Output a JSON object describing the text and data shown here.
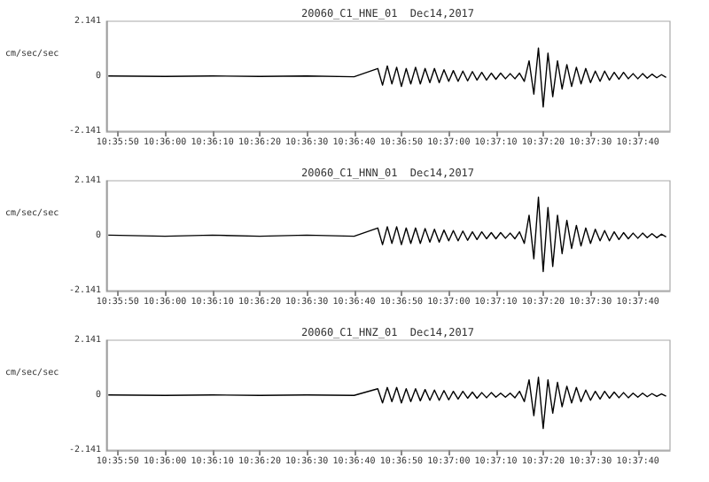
{
  "chart_data": [
    {
      "type": "line",
      "title": "20060_C1_HNE_01  Dec14,2017",
      "ylabel": "cm/sec/sec",
      "marker": "none",
      "grid": false,
      "xlim": [
        10.59656,
        10.62967
      ],
      "ylim": [
        -2.141,
        2.141
      ],
      "yticks": [
        -2.141,
        0,
        2.141
      ],
      "xticks": [
        {
          "value": 10.59722,
          "label": "10:35:50"
        },
        {
          "value": 10.6,
          "label": "10:36:00"
        },
        {
          "value": 10.60278,
          "label": "10:36:10"
        },
        {
          "value": 10.60556,
          "label": "10:36:20"
        },
        {
          "value": 10.60833,
          "label": "10:36:30"
        },
        {
          "value": 10.61111,
          "label": "10:36:40"
        },
        {
          "value": 10.61389,
          "label": "10:36:50"
        },
        {
          "value": 10.61667,
          "label": "10:37:00"
        },
        {
          "value": 10.61944,
          "label": "10:37:10"
        },
        {
          "value": 10.62222,
          "label": "10:37:20"
        },
        {
          "value": 10.625,
          "label": "10:37:30"
        },
        {
          "value": 10.62778,
          "label": "10:37:40"
        }
      ],
      "x": [
        10.59667,
        10.6,
        10.60278,
        10.60556,
        10.60833,
        10.61111,
        10.6125,
        10.61278,
        10.61306,
        10.61333,
        10.61361,
        10.61389,
        10.61417,
        10.61444,
        10.61472,
        10.615,
        10.61528,
        10.61556,
        10.61583,
        10.61611,
        10.61639,
        10.61667,
        10.61694,
        10.61722,
        10.6175,
        10.61778,
        10.61806,
        10.61833,
        10.61861,
        10.61889,
        10.61917,
        10.61944,
        10.61972,
        10.62,
        10.62028,
        10.62056,
        10.62083,
        10.62111,
        10.62139,
        10.62167,
        10.62194,
        10.62222,
        10.6225,
        10.62278,
        10.62306,
        10.62333,
        10.62361,
        10.62389,
        10.62417,
        10.62444,
        10.62472,
        10.625,
        10.62528,
        10.62556,
        10.62583,
        10.62611,
        10.62639,
        10.62667,
        10.62694,
        10.62722,
        10.6275,
        10.62778,
        10.62806,
        10.62833,
        10.62861,
        10.62889,
        10.62917,
        10.62944
      ],
      "series": [
        {
          "color": "#000000",
          "values": [
            0.01,
            -0.01,
            0.01,
            -0.01,
            0.01,
            -0.02,
            0.3,
            -0.35,
            0.4,
            -0.3,
            0.35,
            -0.4,
            0.3,
            -0.3,
            0.35,
            -0.3,
            0.3,
            -0.25,
            0.3,
            -0.25,
            0.25,
            -0.2,
            0.22,
            -0.2,
            0.2,
            -0.18,
            0.18,
            -0.15,
            0.15,
            -0.15,
            0.12,
            -0.12,
            0.12,
            -0.1,
            0.1,
            -0.1,
            0.12,
            -0.2,
            0.6,
            -0.7,
            1.1,
            -1.2,
            0.9,
            -0.8,
            0.6,
            -0.5,
            0.45,
            -0.4,
            0.35,
            -0.3,
            0.3,
            -0.25,
            0.2,
            -0.2,
            0.2,
            -0.15,
            0.15,
            -0.12,
            0.15,
            -0.1,
            0.1,
            -0.1,
            0.1,
            -0.08,
            0.08,
            -0.06,
            0.06,
            -0.05
          ]
        }
      ]
    },
    {
      "type": "line",
      "title": "20060_C1_HNN_01  Dec14,2017",
      "ylabel": "cm/sec/sec",
      "marker": "none",
      "grid": false,
      "xlim": [
        10.59656,
        10.62967
      ],
      "ylim": [
        -2.141,
        2.141
      ],
      "yticks": [
        -2.141,
        0,
        2.141
      ],
      "xticks": [
        {
          "value": 10.59722,
          "label": "10:35:50"
        },
        {
          "value": 10.6,
          "label": "10:36:00"
        },
        {
          "value": 10.60278,
          "label": "10:36:10"
        },
        {
          "value": 10.60556,
          "label": "10:36:20"
        },
        {
          "value": 10.60833,
          "label": "10:36:30"
        },
        {
          "value": 10.61111,
          "label": "10:36:40"
        },
        {
          "value": 10.61389,
          "label": "10:36:50"
        },
        {
          "value": 10.61667,
          "label": "10:37:00"
        },
        {
          "value": 10.61944,
          "label": "10:37:10"
        },
        {
          "value": 10.62222,
          "label": "10:37:20"
        },
        {
          "value": 10.625,
          "label": "10:37:30"
        },
        {
          "value": 10.62778,
          "label": "10:37:40"
        }
      ],
      "x": [
        10.59667,
        10.6,
        10.60278,
        10.60556,
        10.60833,
        10.61111,
        10.6125,
        10.61278,
        10.61306,
        10.61333,
        10.61361,
        10.61389,
        10.61417,
        10.61444,
        10.61472,
        10.615,
        10.61528,
        10.61556,
        10.61583,
        10.61611,
        10.61639,
        10.61667,
        10.61694,
        10.61722,
        10.6175,
        10.61778,
        10.61806,
        10.61833,
        10.61861,
        10.61889,
        10.61917,
        10.61944,
        10.61972,
        10.62,
        10.62028,
        10.62056,
        10.62083,
        10.62111,
        10.62139,
        10.62167,
        10.62194,
        10.62222,
        10.6225,
        10.62278,
        10.62306,
        10.62333,
        10.62361,
        10.62389,
        10.62417,
        10.62444,
        10.62472,
        10.625,
        10.62528,
        10.62556,
        10.62583,
        10.62611,
        10.62639,
        10.62667,
        10.62694,
        10.62722,
        10.6275,
        10.62778,
        10.62806,
        10.62833,
        10.62861,
        10.62889,
        10.62917,
        10.62944
      ],
      "series": [
        {
          "color": "#000000",
          "values": [
            0.02,
            -0.02,
            0.02,
            -0.02,
            0.02,
            -0.02,
            0.3,
            -0.35,
            0.35,
            -0.3,
            0.35,
            -0.35,
            0.3,
            -0.3,
            0.3,
            -0.3,
            0.28,
            -0.25,
            0.25,
            -0.25,
            0.22,
            -0.2,
            0.2,
            -0.2,
            0.18,
            -0.18,
            0.15,
            -0.15,
            0.15,
            -0.12,
            0.12,
            -0.12,
            0.12,
            -0.1,
            0.1,
            -0.12,
            0.15,
            -0.3,
            0.8,
            -0.9,
            1.5,
            -1.4,
            1.1,
            -1.2,
            0.8,
            -0.7,
            0.6,
            -0.5,
            0.4,
            -0.4,
            0.3,
            -0.3,
            0.25,
            -0.2,
            0.2,
            -0.2,
            0.15,
            -0.15,
            0.12,
            -0.12,
            0.1,
            -0.1,
            0.1,
            -0.08,
            0.08,
            -0.08,
            0.06,
            -0.05
          ]
        }
      ]
    },
    {
      "type": "line",
      "title": "20060_C1_HNZ_01  Dec14,2017",
      "ylabel": "cm/sec/sec",
      "marker": "none",
      "grid": false,
      "xlim": [
        10.59656,
        10.62967
      ],
      "ylim": [
        -2.141,
        2.141
      ],
      "yticks": [
        -2.141,
        0,
        2.141
      ],
      "xticks": [
        {
          "value": 10.59722,
          "label": "10:35:50"
        },
        {
          "value": 10.6,
          "label": "10:36:00"
        },
        {
          "value": 10.60278,
          "label": "10:36:10"
        },
        {
          "value": 10.60556,
          "label": "10:36:20"
        },
        {
          "value": 10.60833,
          "label": "10:36:30"
        },
        {
          "value": 10.61111,
          "label": "10:36:40"
        },
        {
          "value": 10.61389,
          "label": "10:36:50"
        },
        {
          "value": 10.61667,
          "label": "10:37:00"
        },
        {
          "value": 10.61944,
          "label": "10:37:10"
        },
        {
          "value": 10.62222,
          "label": "10:37:20"
        },
        {
          "value": 10.625,
          "label": "10:37:30"
        },
        {
          "value": 10.62778,
          "label": "10:37:40"
        }
      ],
      "x": [
        10.59667,
        10.6,
        10.60278,
        10.60556,
        10.60833,
        10.61111,
        10.6125,
        10.61278,
        10.61306,
        10.61333,
        10.61361,
        10.61389,
        10.61417,
        10.61444,
        10.61472,
        10.615,
        10.61528,
        10.61556,
        10.61583,
        10.61611,
        10.61639,
        10.61667,
        10.61694,
        10.61722,
        10.6175,
        10.61778,
        10.61806,
        10.61833,
        10.61861,
        10.61889,
        10.61917,
        10.61944,
        10.61972,
        10.62,
        10.62028,
        10.62056,
        10.62083,
        10.62111,
        10.62139,
        10.62167,
        10.62194,
        10.62222,
        10.6225,
        10.62278,
        10.62306,
        10.62333,
        10.62361,
        10.62389,
        10.62417,
        10.62444,
        10.62472,
        10.625,
        10.62528,
        10.62556,
        10.62583,
        10.62611,
        10.62639,
        10.62667,
        10.62694,
        10.62722,
        10.6275,
        10.62778,
        10.62806,
        10.62833,
        10.62861,
        10.62889,
        10.62917,
        10.62944
      ],
      "series": [
        {
          "color": "#000000",
          "values": [
            0.01,
            -0.01,
            0.01,
            -0.01,
            0.01,
            -0.01,
            0.25,
            -0.3,
            0.3,
            -0.25,
            0.3,
            -0.3,
            0.25,
            -0.25,
            0.25,
            -0.22,
            0.22,
            -0.2,
            0.2,
            -0.2,
            0.18,
            -0.18,
            0.15,
            -0.15,
            0.15,
            -0.12,
            0.12,
            -0.12,
            0.1,
            -0.1,
            0.1,
            -0.08,
            0.08,
            -0.08,
            0.08,
            -0.1,
            0.15,
            -0.25,
            0.6,
            -0.8,
            0.7,
            -1.3,
            0.6,
            -0.7,
            0.5,
            -0.45,
            0.35,
            -0.3,
            0.3,
            -0.25,
            0.2,
            -0.2,
            0.15,
            -0.15,
            0.15,
            -0.12,
            0.12,
            -0.1,
            0.1,
            -0.1,
            0.08,
            -0.08,
            0.08,
            -0.06,
            0.06,
            -0.05,
            0.05,
            -0.04
          ]
        }
      ]
    }
  ]
}
